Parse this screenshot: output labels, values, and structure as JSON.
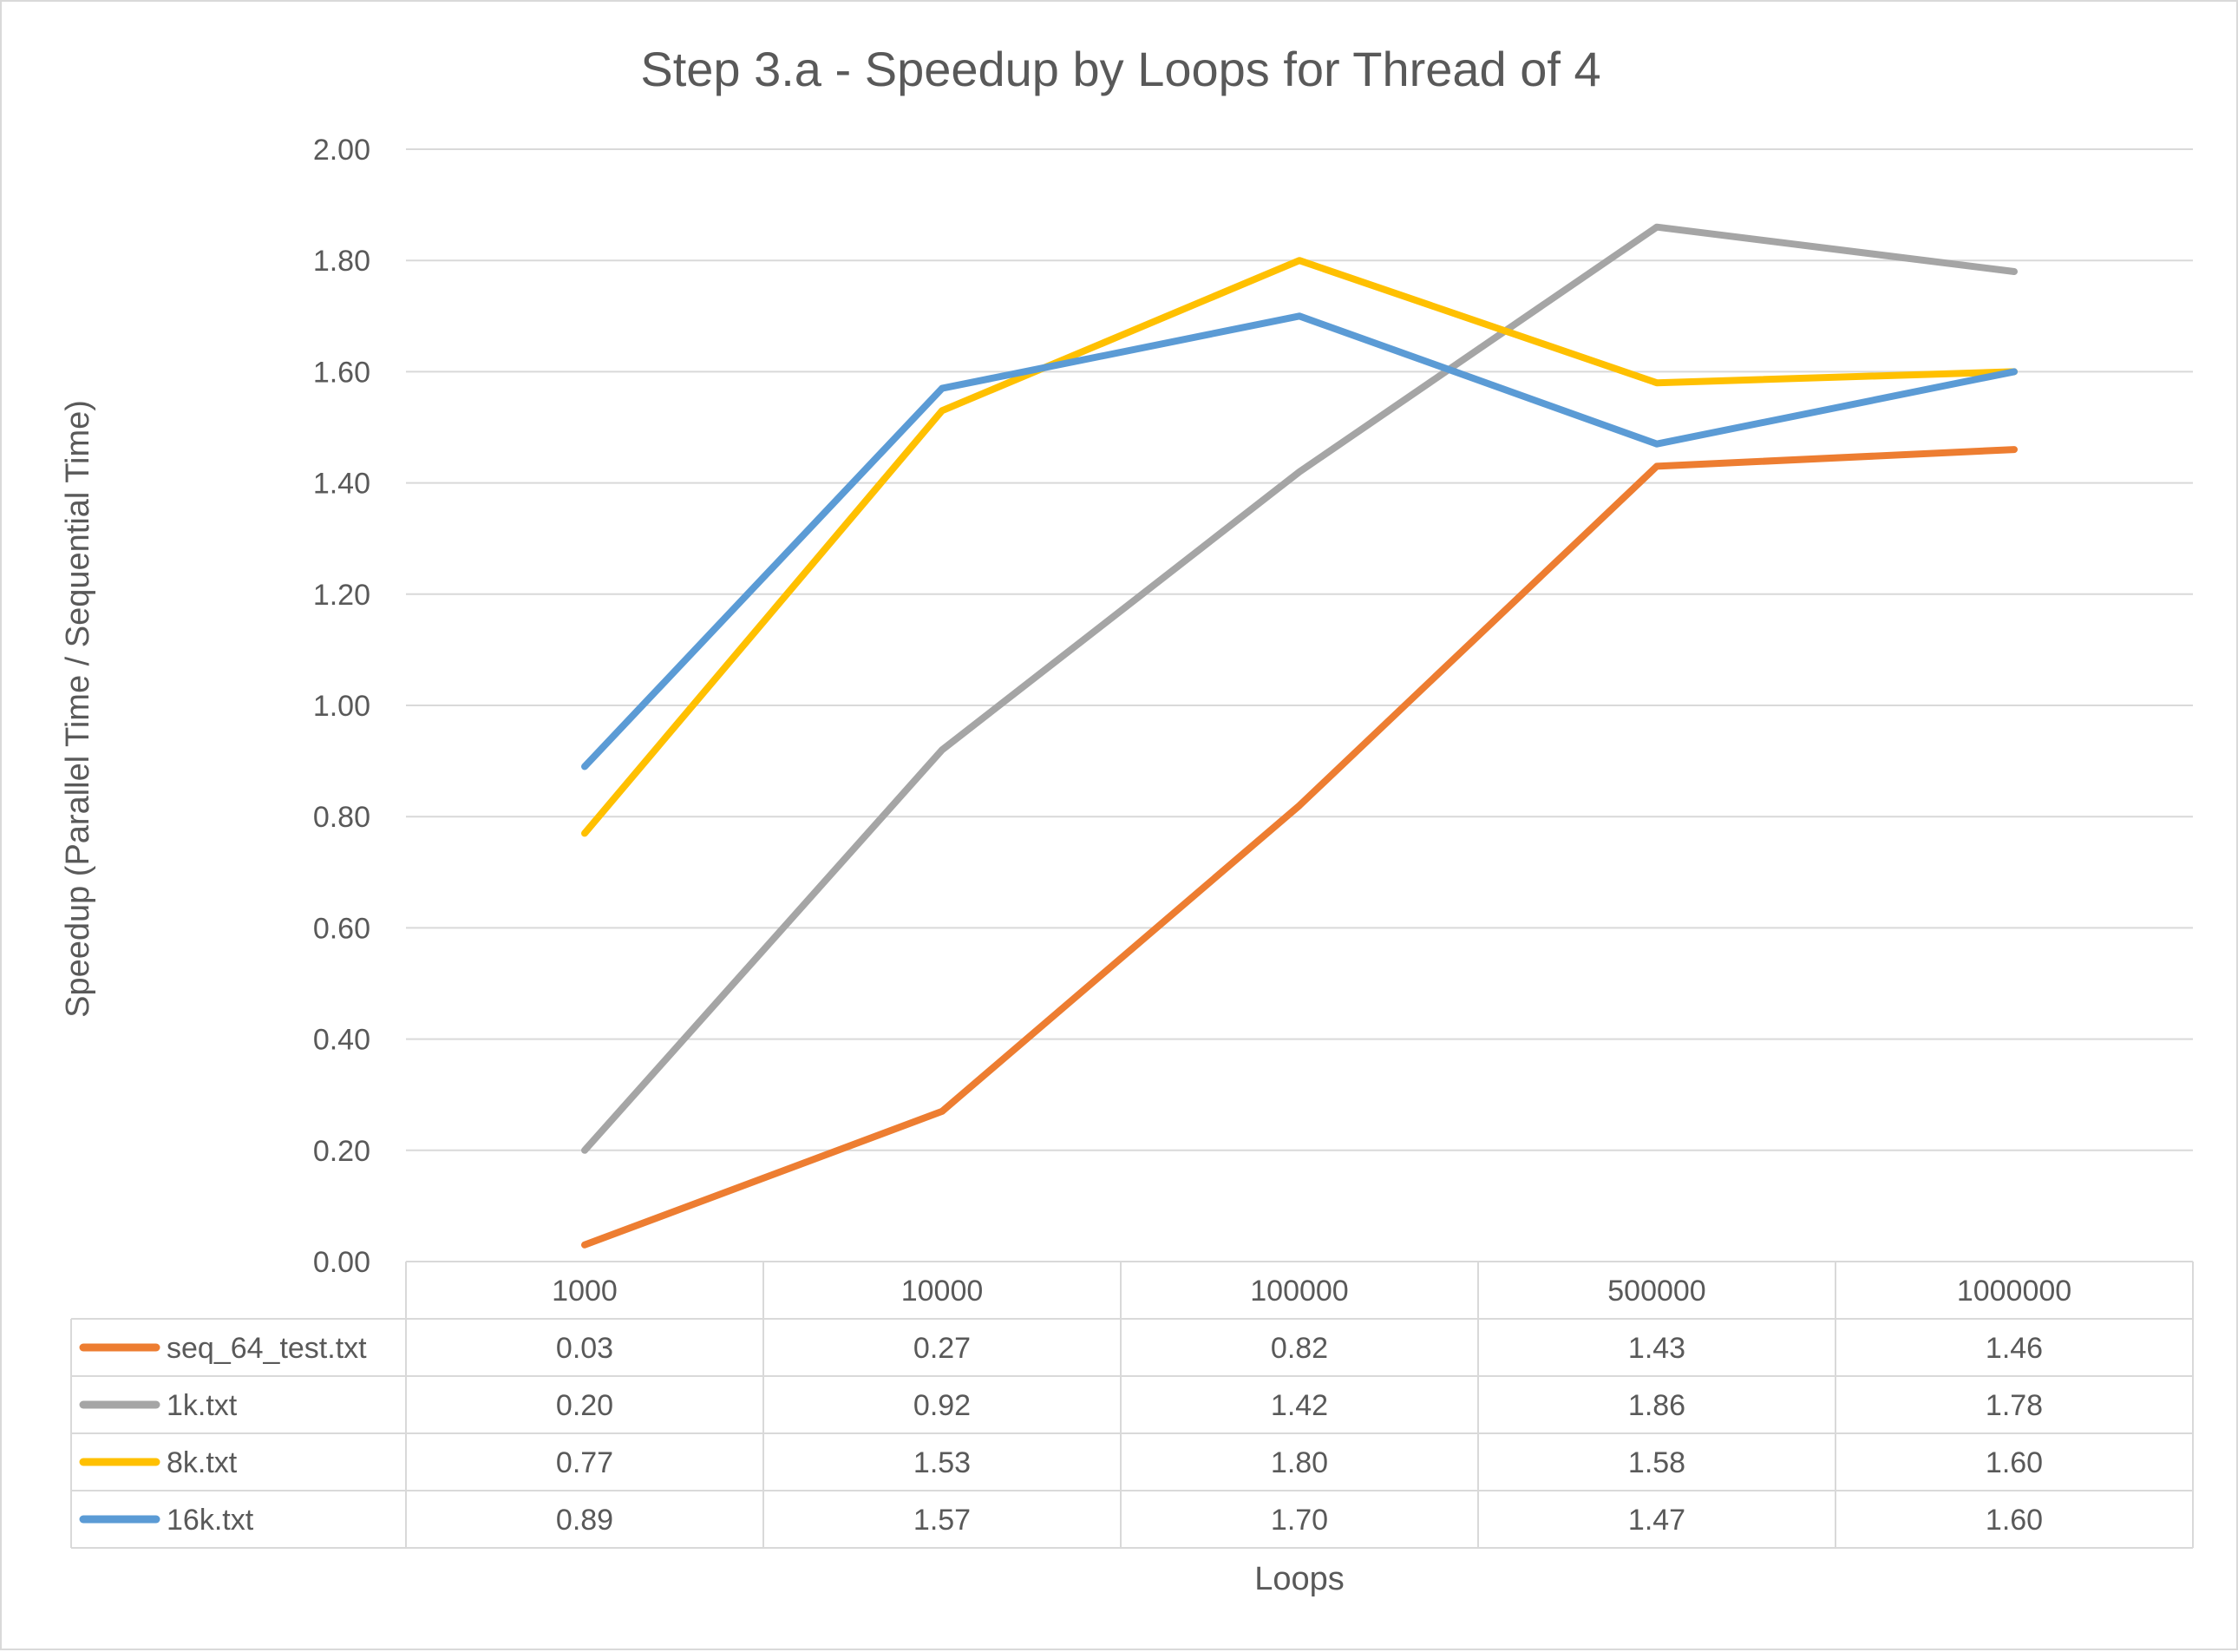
{
  "chart_data": {
    "type": "line",
    "title": "Step 3.a - Speedup by Loops for Thread of 4",
    "xlabel": "Loops",
    "ylabel": "Speedup (Parallel Time / Sequential Time)",
    "categories": [
      "1000",
      "10000",
      "100000",
      "500000",
      "1000000"
    ],
    "ylim": [
      0,
      2
    ],
    "yticks": [
      "0.00",
      "0.20",
      "0.40",
      "0.60",
      "0.80",
      "1.00",
      "1.20",
      "1.40",
      "1.60",
      "1.80",
      "2.00"
    ],
    "grid": true,
    "legend": "data-table",
    "series": [
      {
        "name": "seq_64_test.txt",
        "color": "#ED7D31",
        "values": [
          0.03,
          0.27,
          0.82,
          1.43,
          1.46
        ],
        "labels": [
          "0.03",
          "0.27",
          "0.82",
          "1.43",
          "1.46"
        ]
      },
      {
        "name": "1k.txt",
        "color": "#A5A5A5",
        "values": [
          0.2,
          0.92,
          1.42,
          1.86,
          1.78
        ],
        "labels": [
          "0.20",
          "0.92",
          "1.42",
          "1.86",
          "1.78"
        ]
      },
      {
        "name": "8k.txt",
        "color": "#FFC000",
        "values": [
          0.77,
          1.53,
          1.8,
          1.58,
          1.6
        ],
        "labels": [
          "0.77",
          "1.53",
          "1.80",
          "1.58",
          "1.60"
        ]
      },
      {
        "name": "16k.txt",
        "color": "#5B9BD5",
        "values": [
          0.89,
          1.57,
          1.7,
          1.47,
          1.6
        ],
        "labels": [
          "0.89",
          "1.57",
          "1.70",
          "1.47",
          "1.60"
        ]
      }
    ]
  }
}
